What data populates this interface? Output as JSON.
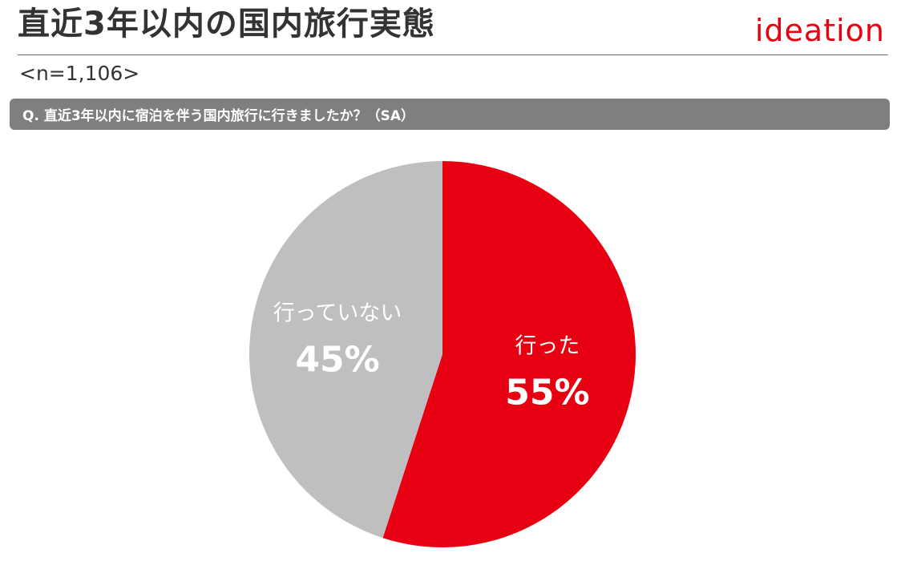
{
  "header": {
    "title": "直近3年以内の国内旅行実態",
    "logo_text": "ideation",
    "sample_size": "<n=1,106>"
  },
  "question": {
    "text": "Q. 直近3年以内に宿泊を伴う国内旅行に行きましたか？（SA）"
  },
  "colors": {
    "accent": "#e60012",
    "neutral": "#bfbfbf",
    "question_bar": "#7f7f7f"
  },
  "chart_data": {
    "type": "pie",
    "start": "12 o'clock",
    "direction": "clockwise",
    "slices": [
      {
        "label": "行った",
        "value": 55,
        "display": "55%",
        "color": "#e60012"
      },
      {
        "label": "行っていない",
        "value": 45,
        "display": "45%",
        "color": "#bfbfbf"
      }
    ]
  }
}
